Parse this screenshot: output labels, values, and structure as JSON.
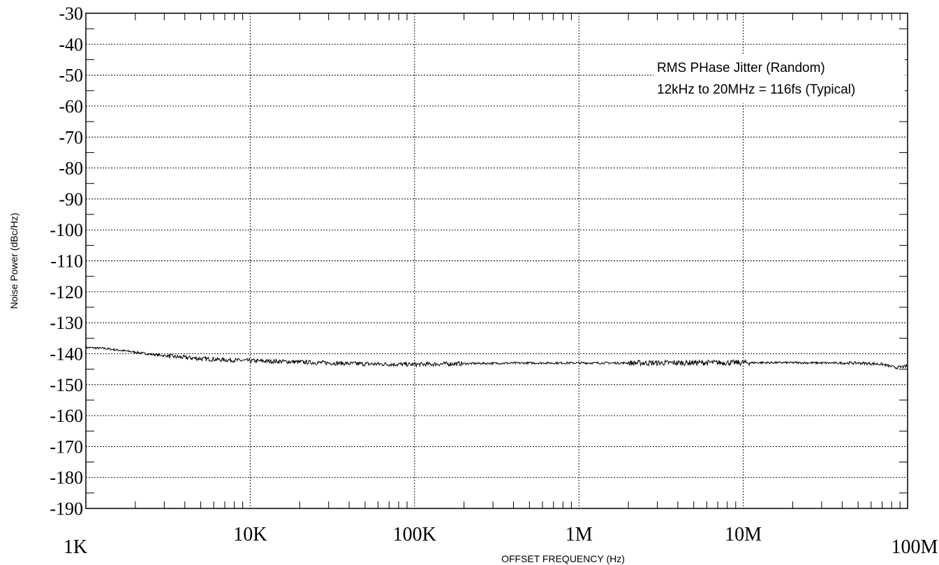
{
  "chart_data": {
    "type": "line",
    "title": "",
    "xlabel": "OFFSET FREQUENCY (Hz)",
    "ylabel": "Noise Power (dBc/Hz)",
    "x_scale": "log",
    "xlim": [
      1000,
      100000000
    ],
    "ylim": [
      -190,
      -30
    ],
    "x_ticks": [
      {
        "value": 1000,
        "label": "1K"
      },
      {
        "value": 10000,
        "label": "10K"
      },
      {
        "value": 100000,
        "label": "100K"
      },
      {
        "value": 1000000,
        "label": "1M"
      },
      {
        "value": 10000000,
        "label": "10M"
      },
      {
        "value": 100000000,
        "label": "100M"
      }
    ],
    "y_ticks": [
      -30,
      -40,
      -50,
      -60,
      -70,
      -80,
      -90,
      -100,
      -110,
      -120,
      -130,
      -140,
      -150,
      -160,
      -170,
      -180,
      -190
    ],
    "grid": true,
    "line_color": "#000000",
    "annotation": {
      "line1": "RMS PHase Jitter (Random)",
      "line2": "12kHz to 20MHz = 116fs (Typical)"
    },
    "series": [
      {
        "x": [
          1000,
          1300,
          1800,
          2500,
          3500,
          5000,
          7000,
          10000,
          15000,
          20000,
          30000,
          50000,
          70000,
          100000,
          150000,
          200000,
          300000,
          500000,
          700000,
          1000000,
          1500000,
          2000000,
          3000000,
          5000000,
          7000000,
          10000000,
          15000000,
          20000000,
          30000000,
          50000000,
          70000000,
          85000000,
          100000000
        ],
        "y": [
          -138,
          -138.3,
          -139.2,
          -140.2,
          -141,
          -141.6,
          -142,
          -142.3,
          -142.5,
          -142.7,
          -143,
          -143.3,
          -143.4,
          -143.5,
          -143.3,
          -143.2,
          -143.1,
          -143,
          -143,
          -143,
          -143,
          -143,
          -143,
          -142.9,
          -142.9,
          -142.9,
          -142.9,
          -142.9,
          -143,
          -143,
          -143.4,
          -144.5,
          -144
        ]
      }
    ]
  }
}
